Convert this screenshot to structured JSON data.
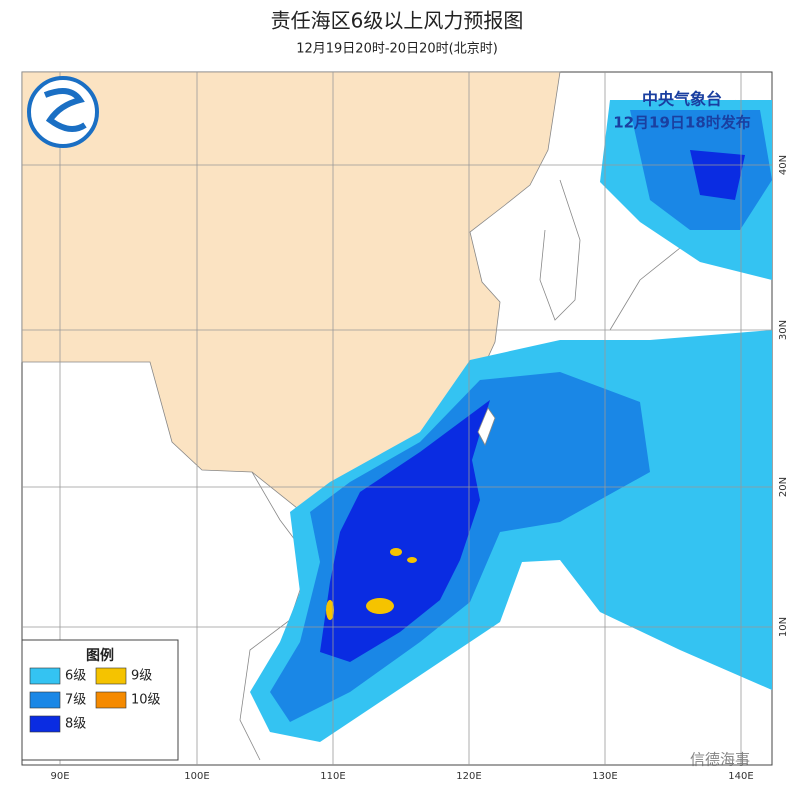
{
  "header": {
    "title": "责任海区6级以上风力预报图",
    "subtitle": "12月19日20时-20日20时(北京时)"
  },
  "issuer": {
    "name": "中央气象台",
    "time": "12月19日18时发布"
  },
  "legend": {
    "title": "图例",
    "items": [
      {
        "label": "6级",
        "color": "#34c3f2"
      },
      {
        "label": "7级",
        "color": "#1a87e6"
      },
      {
        "label": "8级",
        "color": "#0a2ce2"
      },
      {
        "label": "9级",
        "color": "#f5c300"
      },
      {
        "label": "10级",
        "color": "#f58a00"
      }
    ]
  },
  "longitudes": [
    "90E",
    "100E",
    "110E",
    "120E",
    "130E",
    "140E"
  ],
  "latitudes": [
    "40N",
    "30N",
    "20N",
    "10N"
  ],
  "watermark": "信德海事"
}
